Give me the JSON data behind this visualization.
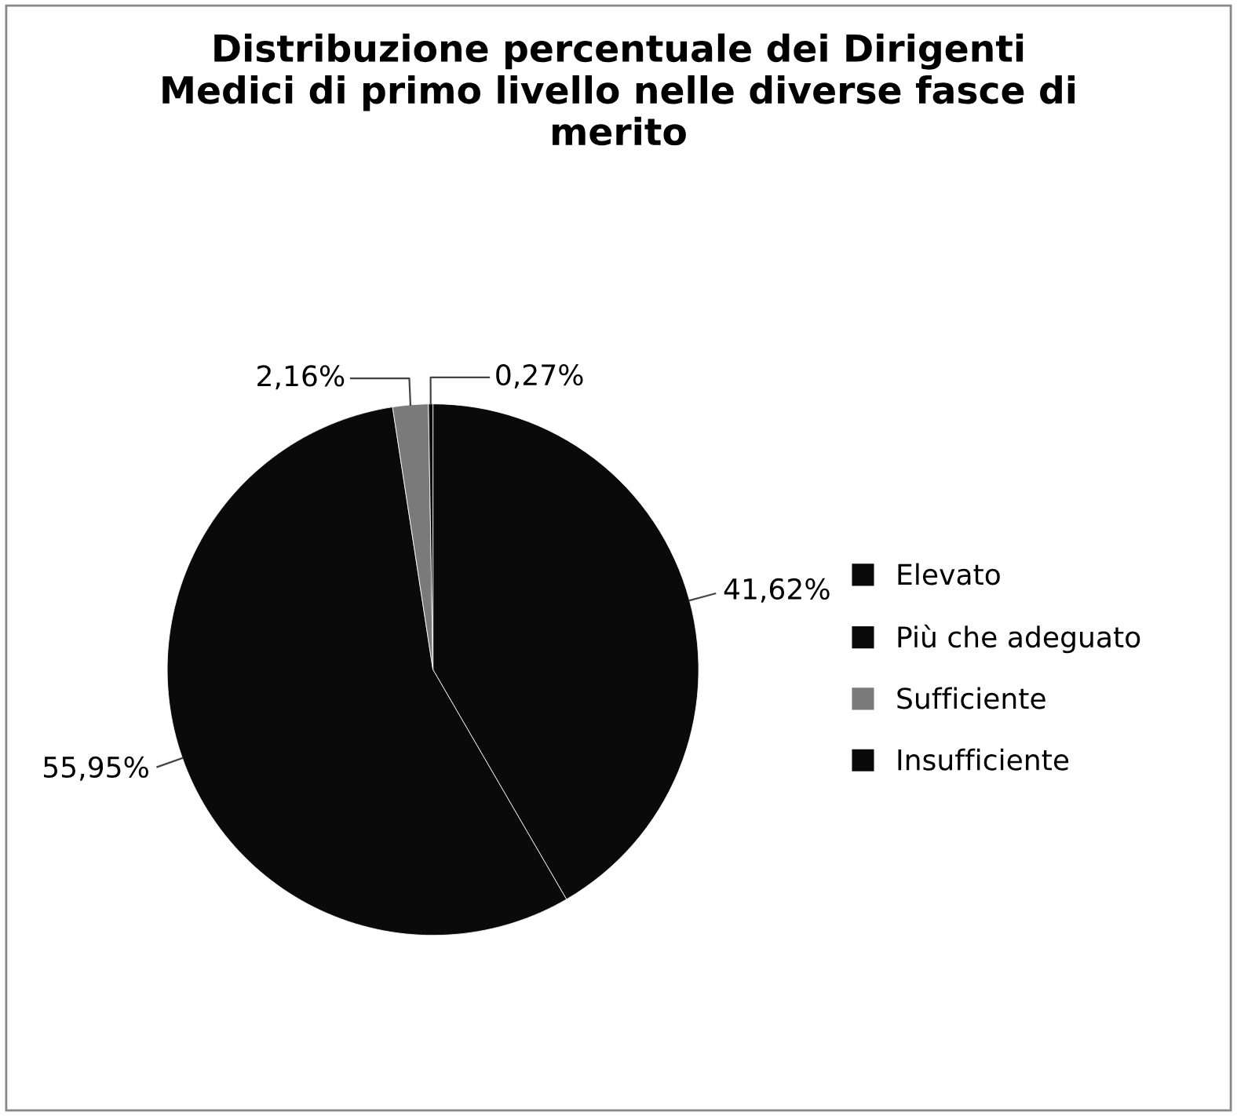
{
  "chart_data": {
    "type": "pie",
    "title": "Distribuzione percentuale dei Dirigenti Medici di primo livello nelle diverse fasce di merito",
    "categories": [
      "Elevato",
      "Più che adeguato",
      "Sufficiente",
      "Insufficiente"
    ],
    "values": [
      41.62,
      55.95,
      2.16,
      0.27
    ],
    "colors": [
      "#0a0a0a",
      "#0a0a0a",
      "#7a7a7a",
      "#0a0a0a"
    ],
    "value_labels": [
      "41,62%",
      "55,95%",
      "2,16%",
      "0,27%"
    ],
    "legend": "right"
  }
}
